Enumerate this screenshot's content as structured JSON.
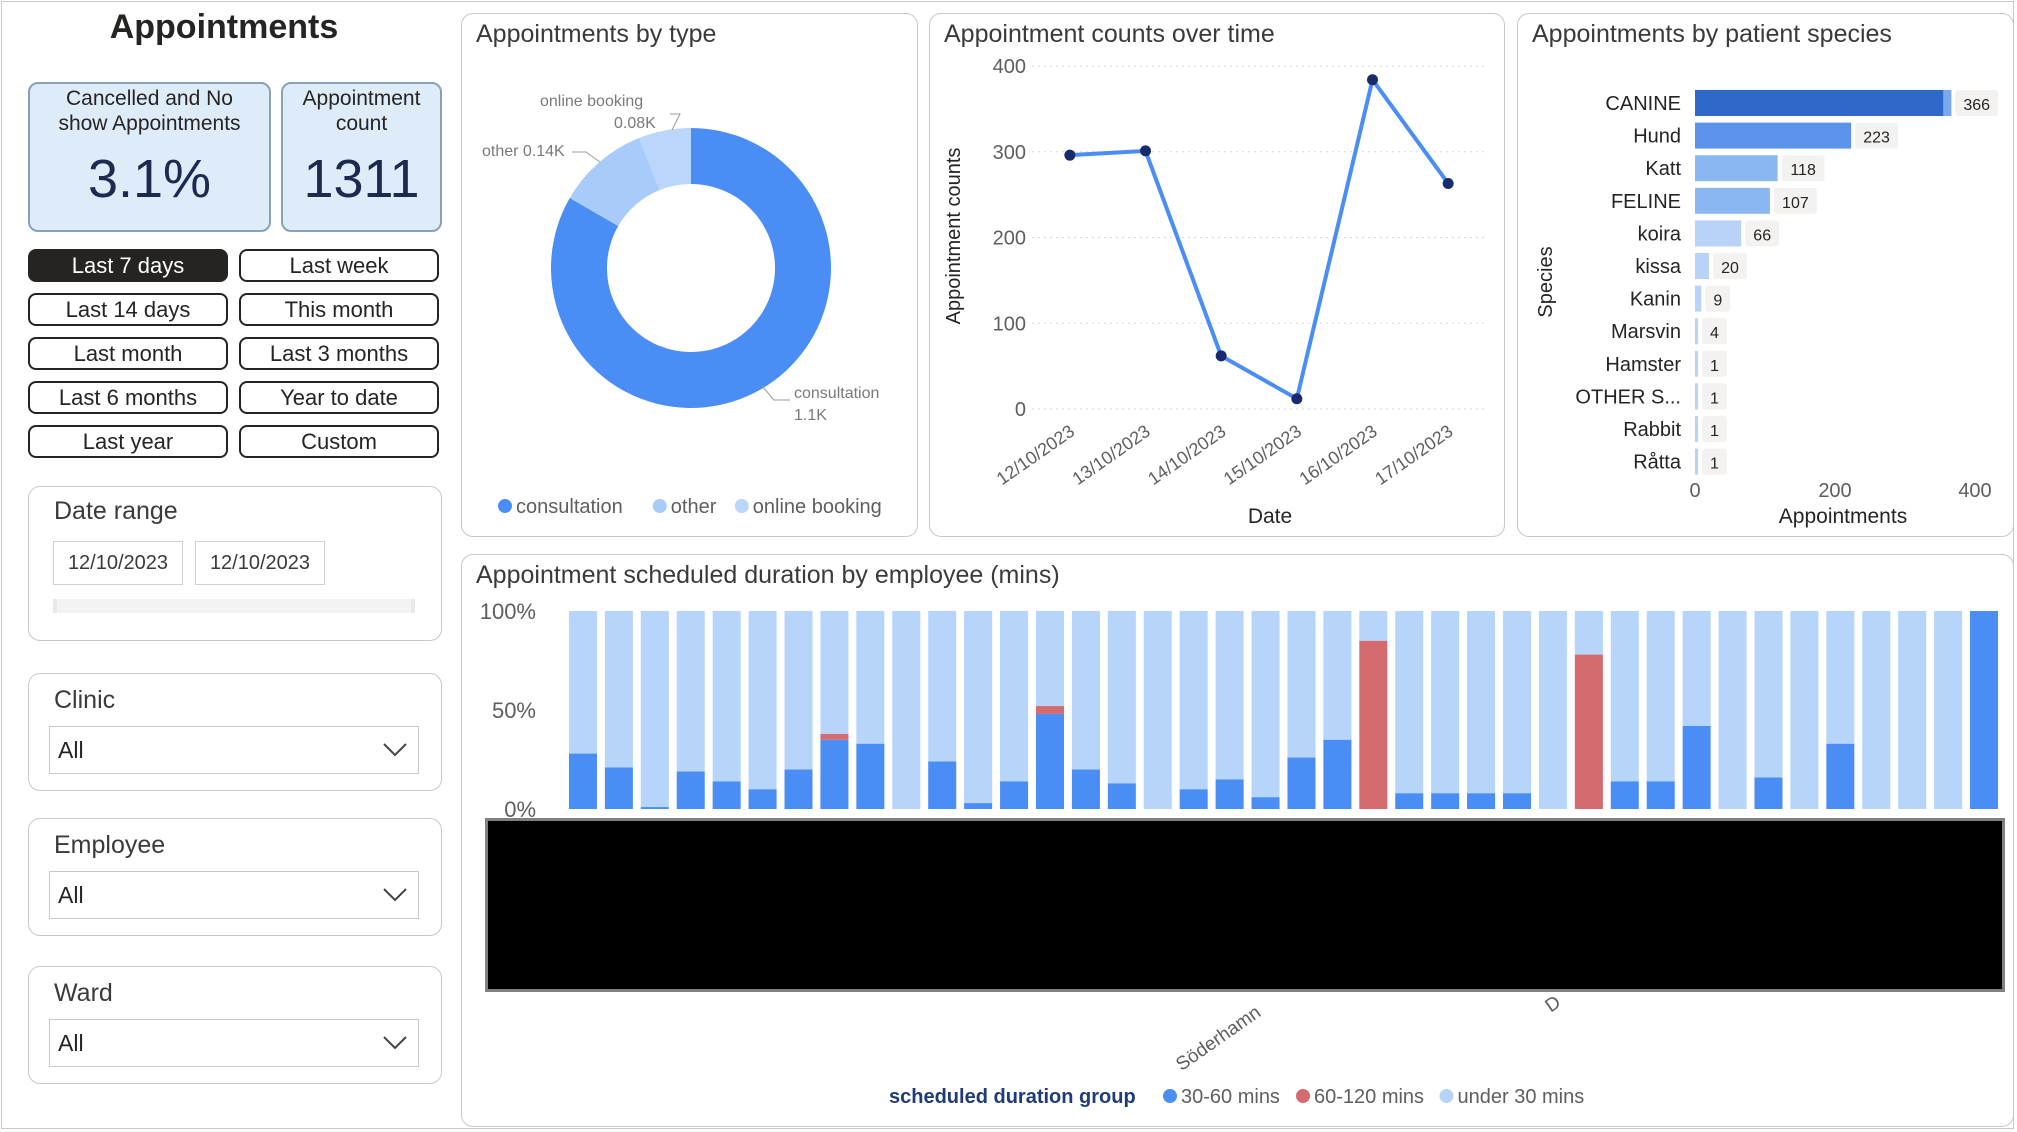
{
  "page": {
    "title": "Appointments"
  },
  "kpis": {
    "cancelled": {
      "label": "Cancelled and No show Appointments",
      "value": "3.1%"
    },
    "count": {
      "label": "Appointment count",
      "value": "1311"
    }
  },
  "date_buttons": [
    {
      "label": "Last 7 days",
      "active": true
    },
    {
      "label": "Last week",
      "active": false
    },
    {
      "label": "Last 14 days",
      "active": false
    },
    {
      "label": "This month",
      "active": false
    },
    {
      "label": "Last month",
      "active": false
    },
    {
      "label": "Last 3 months",
      "active": false
    },
    {
      "label": "Last 6 months",
      "active": false
    },
    {
      "label": "Year to date",
      "active": false
    },
    {
      "label": "Last year",
      "active": false
    },
    {
      "label": "Custom",
      "active": false
    }
  ],
  "date_range": {
    "title": "Date range",
    "start": "12/10/2023",
    "end": "12/10/2023"
  },
  "slicers": {
    "clinic": {
      "title": "Clinic",
      "value": "All"
    },
    "employee": {
      "title": "Employee",
      "value": "All"
    },
    "ward": {
      "title": "Ward",
      "value": "All"
    }
  },
  "colors": {
    "accent": "#4a8ef5",
    "light": "#a8cbfa",
    "lighter": "#b7d4fb",
    "red": "#d46b6f",
    "dark_blue": "#1f3b7a",
    "bar_dark": "#2f68c9",
    "bar_mid": "#5b93ea",
    "bar_light": "#8ab6f2",
    "bar_pale": "#b9d3f8"
  },
  "chart_data": [
    {
      "id": "by_type",
      "type": "pie",
      "title": "Appointments by type",
      "slices": [
        {
          "name": "consultation",
          "value": 1.1,
          "label": "consultation",
          "value_label": "1.1K",
          "color": "#4a8ef5"
        },
        {
          "name": "other",
          "value": 0.14,
          "label": "other 0.14K",
          "color": "#a8cbfa"
        },
        {
          "name": "online booking",
          "value": 0.08,
          "label": "online booking",
          "value_label": "0.08K",
          "color": "#bad6fb"
        }
      ],
      "legend": [
        "consultation",
        "other",
        "online booking"
      ]
    },
    {
      "id": "over_time",
      "type": "line",
      "title": "Appointment counts over time",
      "xlabel": "Date",
      "ylabel": "Appointment counts",
      "x": [
        "12/10/2023",
        "13/10/2023",
        "14/10/2023",
        "15/10/2023",
        "16/10/2023",
        "17/10/2023"
      ],
      "values": [
        296,
        301,
        62,
        12,
        384,
        263
      ],
      "ylim": [
        0,
        400
      ],
      "yticks": [
        0,
        100,
        200,
        300,
        400
      ],
      "grid": true
    },
    {
      "id": "by_species",
      "type": "bar",
      "title": "Appointments by patient species",
      "xlabel": "Appointments",
      "ylabel": "Species",
      "categories": [
        "CANINE",
        "Hund",
        "Katt",
        "FELINE",
        "koira",
        "kissa",
        "Kanin",
        "Marsvin",
        "Hamster",
        "OTHER S...",
        "Rabbit",
        "Råtta"
      ],
      "values": [
        366,
        223,
        118,
        107,
        66,
        20,
        9,
        4,
        1,
        1,
        1,
        1
      ],
      "labels": [
        "366",
        "223",
        "118",
        "107",
        "66",
        "20",
        "9",
        "4",
        "1",
        "1",
        "1",
        "1"
      ],
      "xlim": [
        0,
        400
      ],
      "xticks": [
        "0",
        "200",
        "400"
      ]
    },
    {
      "id": "duration_by_employee",
      "type": "bar",
      "stacked": "100%",
      "title": "Appointment scheduled duration by employee (mins)",
      "yticks": [
        "100%",
        "50%",
        "0%"
      ],
      "visible_x_labels": [
        "Söderhamn",
        "D"
      ],
      "legend_title": "scheduled duration group",
      "legend": [
        "30-60 mins",
        "60-120 mins",
        "under 30 mins"
      ],
      "series": [
        {
          "name": "30-60 mins",
          "values": [
            0.28,
            0.21,
            0.01,
            0.19,
            0.14,
            0.1,
            0.2,
            0.35,
            0.33,
            0,
            0.24,
            0.03,
            0.14,
            0.48,
            0.2,
            0.13,
            0,
            0.1,
            0.15,
            0.06,
            0.26,
            0.35,
            0,
            0.08,
            0.08,
            0.08,
            0.08,
            0,
            0,
            0.14,
            0.14,
            0.42,
            0,
            0.16,
            0,
            0.33,
            0,
            0,
            0,
            1.0
          ]
        },
        {
          "name": "60-120 mins",
          "values": [
            0,
            0,
            0,
            0,
            0,
            0,
            0,
            0.03,
            0,
            0,
            0,
            0,
            0,
            0.04,
            0,
            0,
            0,
            0,
            0,
            0,
            0,
            0,
            0.85,
            0,
            0,
            0,
            0,
            0,
            0.78,
            0,
            0,
            0,
            0,
            0,
            0,
            0,
            0,
            0,
            0,
            0
          ]
        },
        {
          "name": "under 30 mins",
          "values": [
            0.72,
            0.79,
            0.99,
            0.81,
            0.86,
            0.9,
            0.8,
            0.62,
            0.67,
            1.0,
            0.76,
            0.97,
            0.86,
            0.48,
            0.8,
            0.87,
            1.0,
            0.9,
            0.85,
            0.94,
            0.74,
            0.65,
            0.15,
            0.92,
            0.92,
            0.92,
            0.92,
            1.0,
            0.22,
            0.86,
            0.86,
            0.58,
            1.0,
            0.84,
            1.0,
            0.67,
            1.0,
            1.0,
            1.0,
            0
          ]
        }
      ]
    }
  ]
}
